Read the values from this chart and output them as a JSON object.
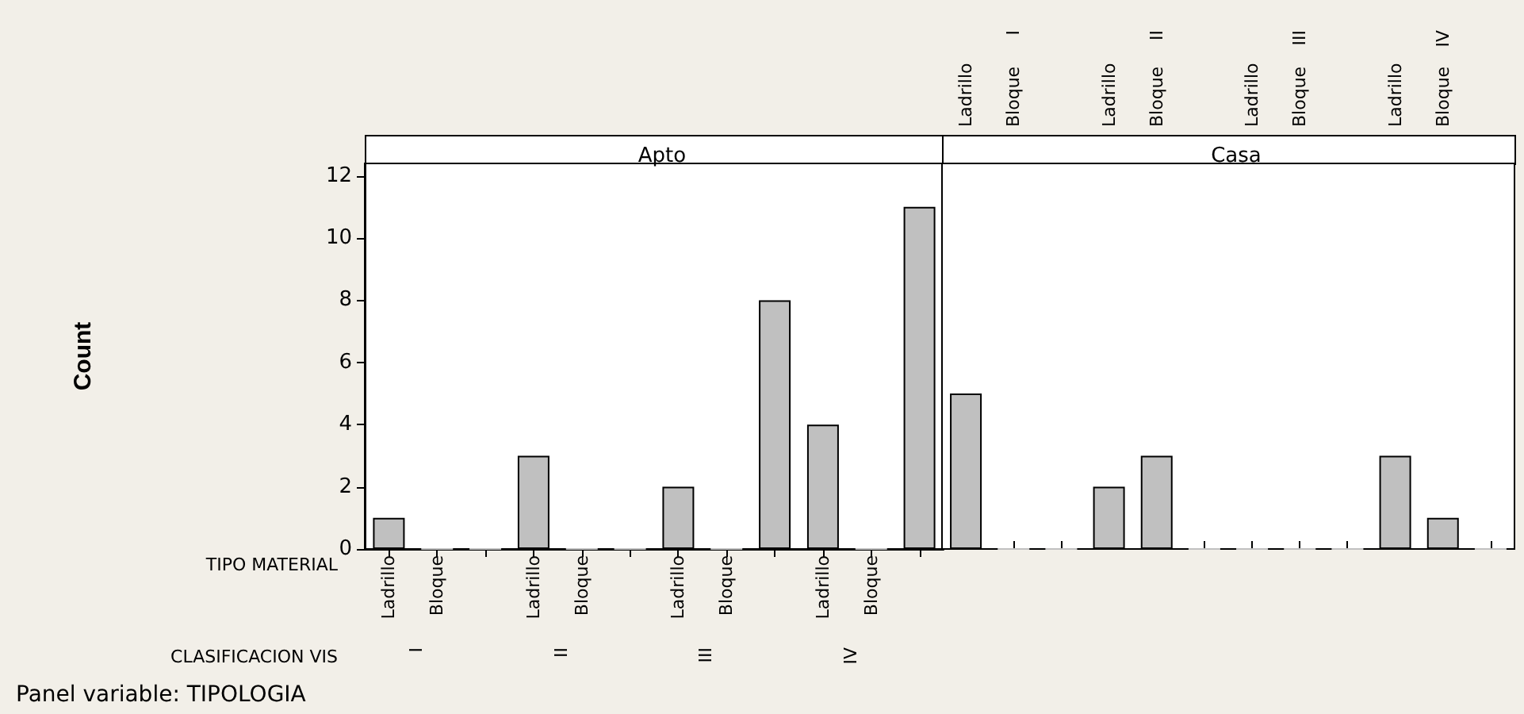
{
  "chart_data": [
    {
      "type": "bar",
      "title": "Apto",
      "ylabel": "Count",
      "categories": [
        "Ladrillo",
        "Bloque",
        null,
        "Ladrillo",
        "Bloque",
        null,
        "Ladrillo",
        "Bloque",
        null,
        "Ladrillo",
        "Bloque",
        null
      ],
      "values": [
        1,
        0,
        0,
        3,
        0,
        0,
        2,
        0,
        8,
        4,
        0,
        11
      ],
      "color": "#c0c0c0",
      "ylim": [
        0,
        12.4
      ],
      "yticks": [
        0,
        2,
        4,
        6,
        8,
        10,
        12
      ],
      "annotations": [
        "I",
        "II",
        "III",
        "IV",
        "TIPO MATERIAL",
        "CLASIFICACION VIS",
        "Panel variable: TIPOLOGIA"
      ]
    },
    {
      "type": "bar",
      "title": "Casa",
      "categories": [
        "Ladrillo",
        "Bloque",
        null,
        "Ladrillo",
        "Bloque",
        null,
        "Ladrillo",
        "Bloque",
        null,
        "Ladrillo",
        "Bloque",
        null
      ],
      "values": [
        5,
        0,
        0,
        2,
        3,
        0,
        0,
        0,
        0,
        3,
        1,
        0
      ],
      "color": "#c0c0c0",
      "ylim": [
        0,
        12.4
      ],
      "yticks": [
        0,
        2,
        4,
        6,
        8,
        10,
        12
      ],
      "tick_labels": "x",
      "annotations": [
        "I",
        "II",
        "III",
        "IV"
      ]
    }
  ]
}
